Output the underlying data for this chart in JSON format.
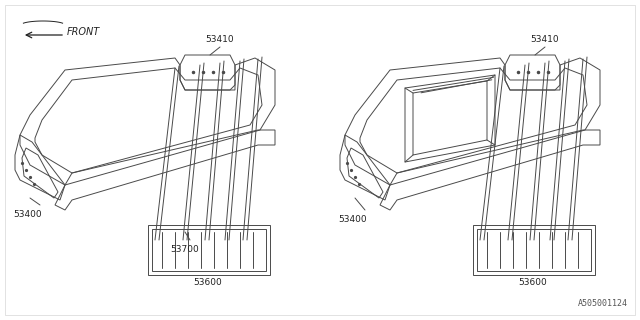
{
  "background_color": "#ffffff",
  "line_color": "#4a4a4a",
  "text_color": "#222222",
  "catalog_number": "A505001124",
  "font_size_parts": 6.5,
  "font_size_catalog": 6,
  "fig_width": 6.4,
  "fig_height": 3.2,
  "dpi": 100
}
